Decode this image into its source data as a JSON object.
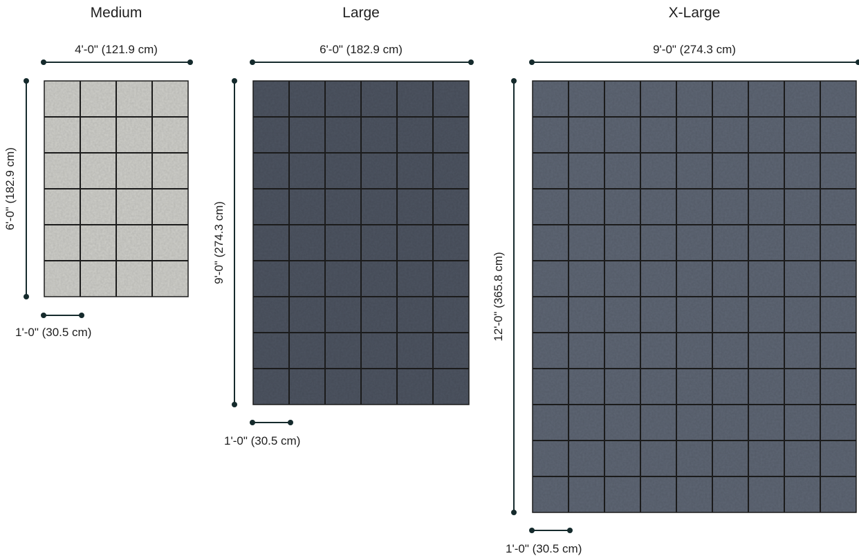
{
  "rugs": [
    {
      "title": "Medium",
      "width_label": "4'-0\" (121.9 cm)",
      "height_label": "6'-0\" (182.9 cm)",
      "scale_label": "1'-0\" (30.5 cm)",
      "width_ft": 4,
      "height_ft": 6,
      "color": "#cfcfca"
    },
    {
      "title": "Large",
      "width_label": "6'-0\" (182.9 cm)",
      "height_label": "9'-0\" (274.3 cm)",
      "scale_label": "1'-0\" (30.5 cm)",
      "width_ft": 6,
      "height_ft": 9,
      "color": "#4d5461"
    },
    {
      "title": "X-Large",
      "width_label": "9'-0\" (274.3 cm)",
      "height_label": "12'-0\" (365.8 cm)",
      "scale_label": "1'-0\" (30.5 cm)",
      "width_ft": 9,
      "height_ft": 12,
      "color": "#5e6674"
    }
  ]
}
